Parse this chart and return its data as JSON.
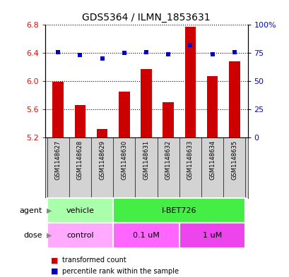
{
  "title": "GDS5364 / ILMN_1853631",
  "samples": [
    "GSM1148627",
    "GSM1148628",
    "GSM1148629",
    "GSM1148630",
    "GSM1148631",
    "GSM1148632",
    "GSM1148633",
    "GSM1148634",
    "GSM1148635"
  ],
  "bar_values": [
    5.99,
    5.66,
    5.32,
    5.85,
    6.17,
    5.7,
    6.77,
    6.07,
    6.28
  ],
  "blue_values": [
    76,
    73,
    70,
    75,
    76,
    74,
    82,
    74,
    76
  ],
  "ylim_left": [
    5.2,
    6.8
  ],
  "ylim_right": [
    0,
    100
  ],
  "yticks_left": [
    5.2,
    5.6,
    6.0,
    6.4,
    6.8
  ],
  "yticks_right": [
    0,
    25,
    50,
    75,
    100
  ],
  "ytick_labels_right": [
    "0",
    "25",
    "50",
    "75",
    "100%"
  ],
  "bar_color": "#cc0000",
  "blue_color": "#0000cc",
  "bar_bottom": 5.2,
  "agent_groups": [
    {
      "label": "vehicle",
      "start": 0,
      "end": 3,
      "color": "#aaffaa"
    },
    {
      "label": "I-BET726",
      "start": 3,
      "end": 9,
      "color": "#44ee44"
    }
  ],
  "dose_groups": [
    {
      "label": "control",
      "start": 0,
      "end": 3,
      "color": "#ffaaff"
    },
    {
      "label": "0.1 uM",
      "start": 3,
      "end": 6,
      "color": "#ff66ff"
    },
    {
      "label": "1 uM",
      "start": 6,
      "end": 9,
      "color": "#ee44ee"
    }
  ],
  "legend_bar_label": "transformed count",
  "legend_dot_label": "percentile rank within the sample",
  "plot_bg": "#ffffff",
  "sample_bg": "#d3d3d3"
}
